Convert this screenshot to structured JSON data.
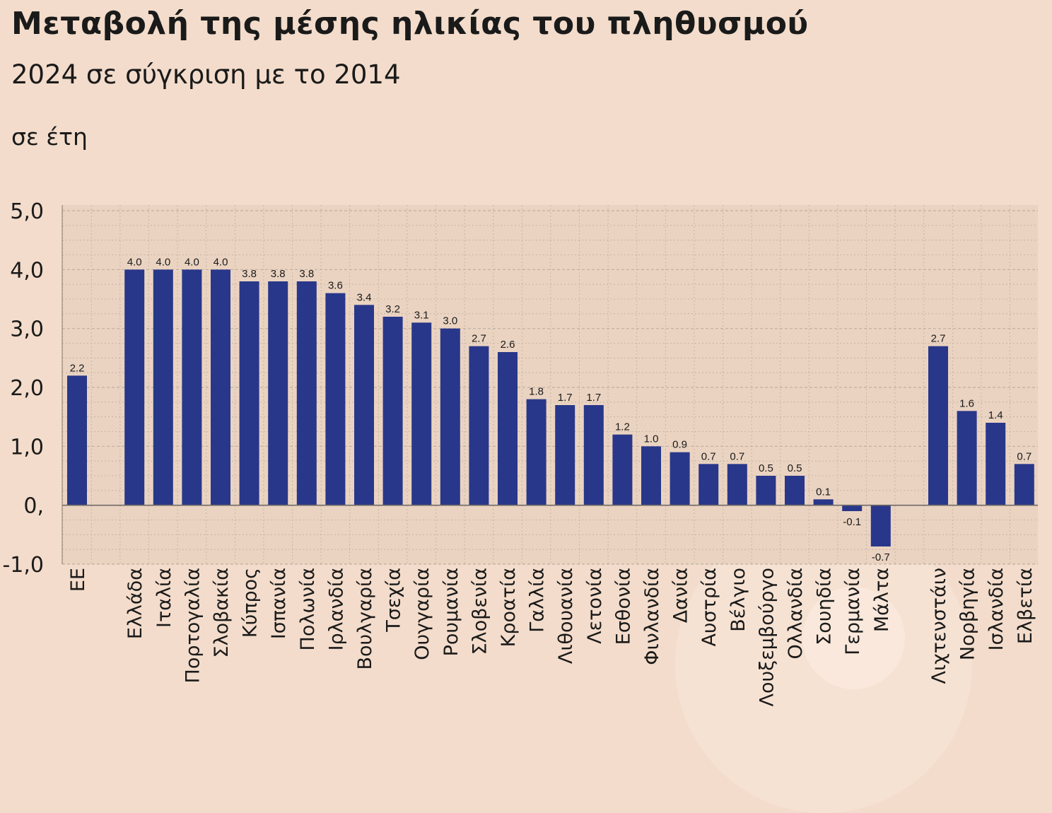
{
  "chart_data": {
    "type": "bar",
    "title": "Μεταβολή της μέσης ηλικίας του πληθυσμού",
    "subtitle": "2024 σε σύγκριση με το 2014",
    "ylabel": "σε έτη",
    "ylim": [
      -1,
      5
    ],
    "yticks": [
      {
        "value": 5,
        "label": "5,0"
      },
      {
        "value": 4,
        "label": "4,0"
      },
      {
        "value": 3,
        "label": "3,0"
      },
      {
        "value": 2,
        "label": "2,0"
      },
      {
        "value": 1,
        "label": "1,0"
      },
      {
        "value": 0,
        "label": "0,"
      },
      {
        "value": -1,
        "label": "-1,0"
      }
    ],
    "grid": true,
    "categories": [
      "ΕΕ",
      "Ελλάδα",
      "Ιταλία",
      "Πορτογαλία",
      "Σλοβακία",
      "Κύπρος",
      "Ισπανία",
      "Πολωνία",
      "Ιρλανδία",
      "Βουλγαρία",
      "Τσεχία",
      "Ουγγαρία",
      "Ρουμανία",
      "Σλοβενία",
      "Κροατία",
      "Γαλλία",
      "Λιθουανία",
      "Λετονία",
      "Εσθονία",
      "Φινλανδία",
      "Δανία",
      "Αυστρία",
      "Βέλγιο",
      "Λουξεμβούργο",
      "Ολλανδία",
      "Σουηδία",
      "Γερμανία",
      "Μάλτα",
      "Λιχτενστάιν",
      "Νορβηγία",
      "Ισλανδία",
      "Ελβετία"
    ],
    "values": [
      2.2,
      4.0,
      4.0,
      4.0,
      4.0,
      3.8,
      3.8,
      3.8,
      3.6,
      3.4,
      3.2,
      3.1,
      3.0,
      2.7,
      2.6,
      1.8,
      1.7,
      1.7,
      1.2,
      1.0,
      0.9,
      0.7,
      0.7,
      0.5,
      0.5,
      0.1,
      -0.1,
      -0.7,
      2.7,
      1.6,
      1.4,
      0.7
    ],
    "value_labels": [
      "2.2",
      "4.0",
      "4.0",
      "4.0",
      "4.0",
      "3.8",
      "3.8",
      "3.8",
      "3.6",
      "3.4",
      "3.2",
      "3.1",
      "3.0",
      "2.7",
      "2.6",
      "1.8",
      "1.7",
      "1.7",
      "1.2",
      "1.0",
      "0.9",
      "0.7",
      "0.7",
      "0.5",
      "0.5",
      "0.1",
      "-0.1",
      "-0.7",
      "2.7",
      "1.6",
      "1.4",
      "0.7"
    ],
    "bar_color": "#28378a",
    "gridline_color": "#bfae9f",
    "plot_background": "#ead3c1",
    "page_background": "#f3dccb"
  }
}
